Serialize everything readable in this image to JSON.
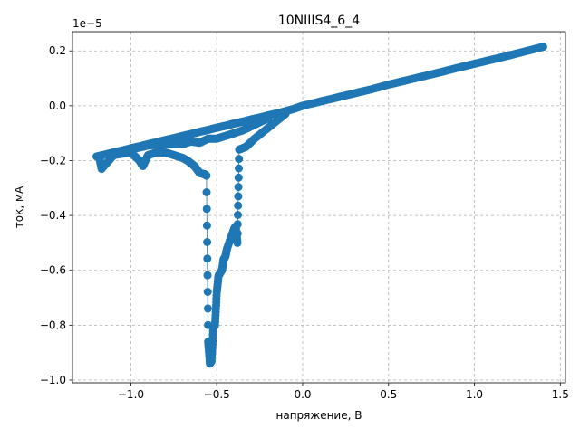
{
  "chart_data": {
    "type": "scatter",
    "title": "10NIIIS4_6_4",
    "xlabel": "напряжение, В",
    "ylabel": "ток, мА",
    "offset_text": "1e−5",
    "xlim": [
      -1.34,
      1.53
    ],
    "ylim": [
      -1.01,
      0.27
    ],
    "x_ticks": [
      -1.0,
      -0.5,
      0.0,
      0.5,
      1.0,
      1.5
    ],
    "x_tick_labels": [
      "−1.0",
      "−0.5",
      "0.0",
      "0.5",
      "1.0",
      "1.5"
    ],
    "y_ticks": [
      -1.0,
      -0.8,
      -0.6,
      -0.4,
      -0.2,
      0.0,
      0.2
    ],
    "y_tick_labels": [
      "−1.0",
      "−0.8",
      "−0.6",
      "−0.4",
      "−0.2",
      "0.0",
      "0.2"
    ],
    "grid": true,
    "color": "#1f77b4",
    "series": [
      {
        "points": [
          [
            -1.2,
            -0.185
          ],
          [
            -1.15,
            -0.178
          ],
          [
            -1.1,
            -0.17
          ],
          [
            -1.05,
            -0.163
          ],
          [
            -1.0,
            -0.155
          ],
          [
            -0.95,
            -0.148
          ],
          [
            -0.9,
            -0.14
          ],
          [
            -0.85,
            -0.133
          ],
          [
            -0.8,
            -0.125
          ],
          [
            -0.75,
            -0.118
          ],
          [
            -0.7,
            -0.11
          ],
          [
            -0.65,
            -0.103
          ],
          [
            -0.6,
            -0.095
          ],
          [
            -0.55,
            -0.088
          ],
          [
            -0.5,
            -0.08
          ],
          [
            -0.45,
            -0.073
          ],
          [
            -0.4,
            -0.065
          ],
          [
            -0.35,
            -0.058
          ],
          [
            -0.3,
            -0.05
          ],
          [
            -0.25,
            -0.043
          ],
          [
            -0.2,
            -0.035
          ],
          [
            -0.15,
            -0.028
          ],
          [
            -0.1,
            -0.02
          ],
          [
            -0.05,
            -0.011
          ],
          [
            0.0,
            0.0
          ],
          [
            0.1,
            0.015
          ],
          [
            0.2,
            0.03
          ],
          [
            0.3,
            0.045
          ],
          [
            0.4,
            0.06
          ],
          [
            0.5,
            0.077
          ],
          [
            0.6,
            0.092
          ],
          [
            0.7,
            0.107
          ],
          [
            0.8,
            0.122
          ],
          [
            0.9,
            0.138
          ],
          [
            1.0,
            0.153
          ],
          [
            1.1,
            0.168
          ],
          [
            1.2,
            0.183
          ],
          [
            1.3,
            0.199
          ],
          [
            1.4,
            0.215
          ]
        ]
      },
      {
        "points": [
          [
            -1.18,
            -0.2
          ],
          [
            -1.17,
            -0.23
          ],
          [
            -1.1,
            -0.18
          ],
          [
            -1.0,
            -0.17
          ],
          [
            -0.95,
            -0.2
          ],
          [
            -0.93,
            -0.22
          ],
          [
            -0.9,
            -0.18
          ],
          [
            -0.85,
            -0.17
          ],
          [
            -0.8,
            -0.17
          ],
          [
            -0.75,
            -0.18
          ],
          [
            -0.7,
            -0.19
          ],
          [
            -0.67,
            -0.2
          ],
          [
            -0.63,
            -0.22
          ],
          [
            -0.6,
            -0.245
          ],
          [
            -0.57,
            -0.25
          ],
          [
            -0.56,
            -0.255
          ],
          [
            -0.55,
            -0.86
          ],
          [
            -0.54,
            -0.94
          ],
          [
            -0.53,
            -0.93
          ],
          [
            -0.52,
            -0.81
          ],
          [
            -0.51,
            -0.8
          ],
          [
            -0.5,
            -0.68
          ],
          [
            -0.49,
            -0.62
          ],
          [
            -0.47,
            -0.6
          ],
          [
            -0.46,
            -0.56
          ],
          [
            -0.45,
            -0.55
          ],
          [
            -0.44,
            -0.52
          ],
          [
            -0.4,
            -0.45
          ],
          [
            -0.39,
            -0.44
          ],
          [
            -0.38,
            -0.5
          ],
          [
            -0.37,
            -0.16
          ],
          [
            -0.33,
            -0.15
          ],
          [
            -0.28,
            -0.12
          ],
          [
            -0.2,
            -0.08
          ],
          [
            -0.1,
            -0.03
          ]
        ]
      },
      {
        "points": [
          [
            -1.1,
            -0.175
          ],
          [
            -1.0,
            -0.16
          ],
          [
            -0.9,
            -0.145
          ],
          [
            -0.8,
            -0.14
          ],
          [
            -0.7,
            -0.14
          ],
          [
            -0.65,
            -0.13
          ],
          [
            -0.6,
            -0.135
          ],
          [
            -0.55,
            -0.12
          ],
          [
            -0.5,
            -0.12
          ],
          [
            -0.45,
            -0.11
          ],
          [
            -0.4,
            -0.1
          ],
          [
            -0.35,
            -0.09
          ],
          [
            -0.3,
            -0.075
          ],
          [
            -0.25,
            -0.06
          ],
          [
            -0.2,
            -0.045
          ]
        ]
      }
    ]
  }
}
